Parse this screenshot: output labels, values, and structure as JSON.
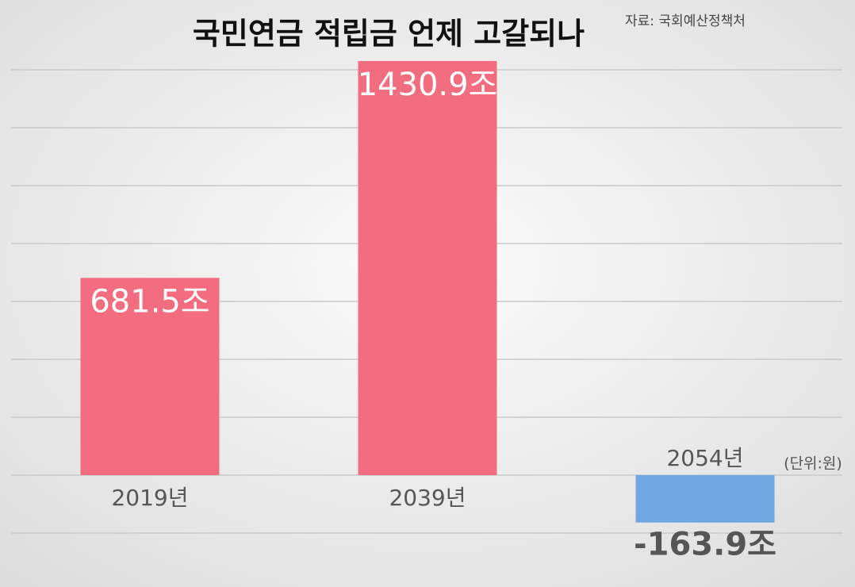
{
  "chart_data": {
    "type": "bar",
    "title": "국민연금 적립금 언제 고갈되나",
    "source": "자료: 국회예산정책처",
    "unit": "(단위:원)",
    "categories": [
      "2019년",
      "2039년",
      "2054년"
    ],
    "values": [
      681.5,
      1430.9,
      -163.9
    ],
    "value_labels": [
      "681.5조",
      "1430.9조",
      "-163.9조"
    ],
    "colors": [
      "#f36d80",
      "#f36d80",
      "#6fa7e2"
    ],
    "ylim": [
      -277,
      1532
    ]
  }
}
